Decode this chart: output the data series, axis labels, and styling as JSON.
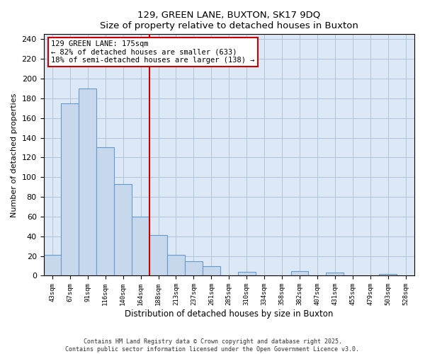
{
  "title": "129, GREEN LANE, BUXTON, SK17 9DQ",
  "subtitle": "Size of property relative to detached houses in Buxton",
  "xlabel": "Distribution of detached houses by size in Buxton",
  "ylabel": "Number of detached properties",
  "categories": [
    "43sqm",
    "67sqm",
    "91sqm",
    "116sqm",
    "140sqm",
    "164sqm",
    "188sqm",
    "213sqm",
    "237sqm",
    "261sqm",
    "285sqm",
    "310sqm",
    "334sqm",
    "358sqm",
    "382sqm",
    "407sqm",
    "431sqm",
    "455sqm",
    "479sqm",
    "503sqm",
    "528sqm"
  ],
  "values": [
    21,
    175,
    190,
    130,
    93,
    60,
    41,
    21,
    15,
    10,
    0,
    4,
    0,
    0,
    5,
    0,
    3,
    0,
    0,
    2,
    0
  ],
  "bar_color": "#c8d8ec",
  "bar_edge_color": "#6699cc",
  "vline_x_index": 6,
  "vline_color": "#cc0000",
  "annotation_box_text": "129 GREEN LANE: 175sqm\n← 82% of detached houses are smaller (633)\n18% of semi-detached houses are larger (138) →",
  "ylim": [
    0,
    245
  ],
  "yticks": [
    0,
    20,
    40,
    60,
    80,
    100,
    120,
    140,
    160,
    180,
    200,
    220,
    240
  ],
  "footer_line1": "Contains HM Land Registry data © Crown copyright and database right 2025.",
  "footer_line2": "Contains public sector information licensed under the Open Government Licence v3.0.",
  "bg_color": "#ffffff",
  "plot_bg_color": "#dce8f5",
  "grid_color": "#b0c4d8"
}
